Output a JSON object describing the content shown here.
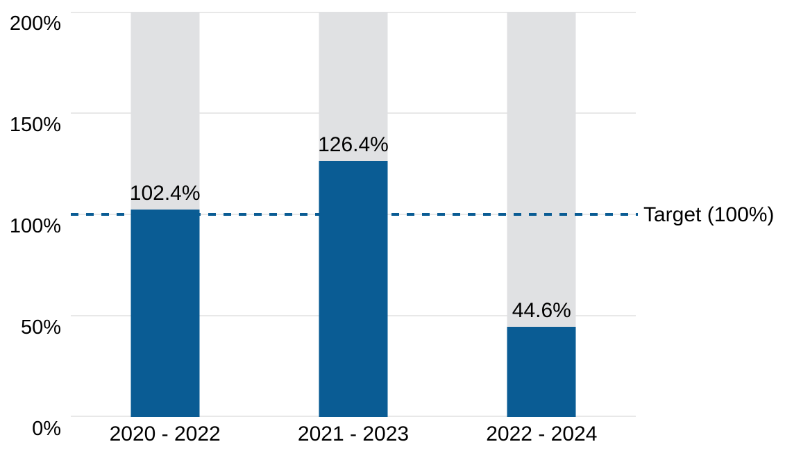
{
  "chart_data": {
    "type": "bar",
    "title": "",
    "categories": [
      "2020 - 2022",
      "2021 - 2023",
      "2022 - 2024"
    ],
    "values": [
      102.4,
      126.4,
      44.6
    ],
    "value_labels": [
      "102.4%",
      "126.4%",
      "44.6%"
    ],
    "y_ticks": [
      "0%",
      "50%",
      "100%",
      "150%",
      "200%"
    ],
    "ylim": [
      0,
      200
    ],
    "grid": true,
    "track_max": 200,
    "legend": "none",
    "target_line": {
      "value": 100,
      "label": "Target (100%)",
      "style": "dashed"
    },
    "colors": {
      "bar_fill": "#0A5C94",
      "bar_track": "#E0E1E3",
      "gridline": "#E8E8E8",
      "target_line": "#0A5C94",
      "text": "#000000"
    }
  }
}
